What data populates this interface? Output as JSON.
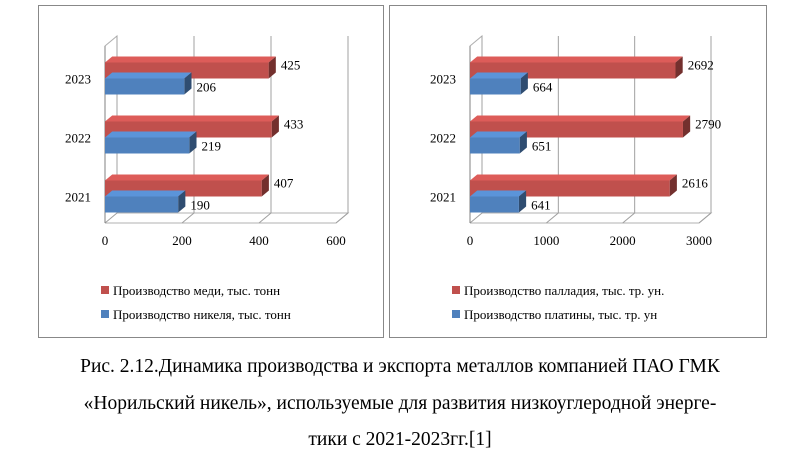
{
  "chart_data": [
    {
      "type": "bar",
      "orientation": "horizontal",
      "categories": [
        "2021",
        "2022",
        "2023"
      ],
      "series": [
        {
          "name": "Производство меди, тыс. тонн",
          "values": [
            407,
            433,
            425
          ],
          "color": "#c0504d"
        },
        {
          "name": "Производство никеля, тыс. тонн",
          "values": [
            190,
            219,
            206
          ],
          "color": "#4f81bd"
        }
      ],
      "xticks": [
        "0",
        "200",
        "400",
        "600"
      ],
      "xlim": [
        0,
        600
      ],
      "grid": true,
      "legend_position": "bottom"
    },
    {
      "type": "bar",
      "orientation": "horizontal",
      "categories": [
        "2021",
        "2022",
        "2023"
      ],
      "series": [
        {
          "name": "Производство палладия, тыс. тр. ун.",
          "values": [
            2616,
            2790,
            2692
          ],
          "color": "#c0504d"
        },
        {
          "name": "Производство платины, тыс. тр. ун",
          "values": [
            641,
            651,
            664
          ],
          "color": "#4f81bd"
        }
      ],
      "xticks": [
        "0",
        "1000",
        "2000",
        "3000"
      ],
      "xlim": [
        0,
        3000
      ],
      "grid": true,
      "legend_position": "bottom"
    }
  ],
  "caption": {
    "line1": "Рис. 2.12.Динамика производства и экспорта металлов компанией ПАО ГМК",
    "line2": "«Норильский никель», используемые для развития низкоуглеродной энерге-",
    "line3": "тики с 2021-2023гг.[1]"
  }
}
